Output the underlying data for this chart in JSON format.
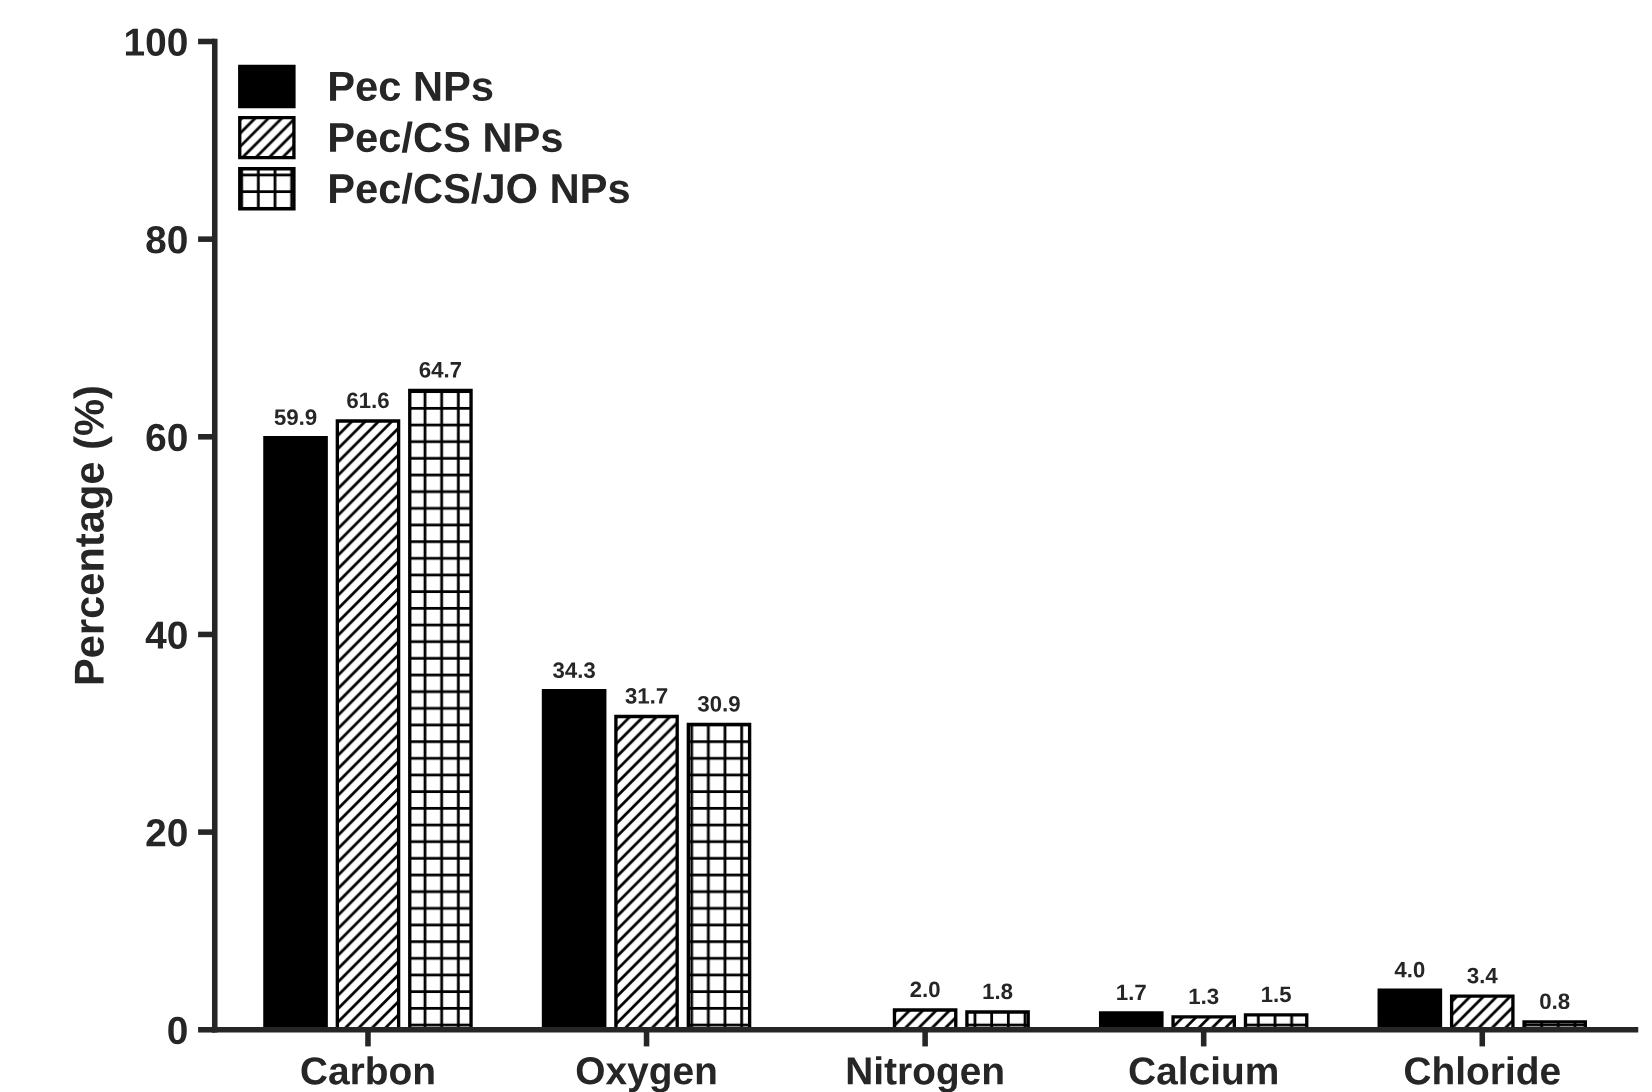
{
  "chart_data": {
    "type": "bar",
    "ylabel": "Percentage (%)",
    "categories": [
      "Carbon",
      "Oxygen",
      "Nitrogen",
      "Calcium",
      "Chloride"
    ],
    "series": [
      {
        "name": "Pec NPs",
        "color": "#000000",
        "values": [
          59.9,
          34.3,
          null,
          1.7,
          4.0
        ],
        "value_labels": [
          "59.9",
          "34.3",
          null,
          "1.7",
          "4.0"
        ]
      },
      {
        "name": "Pec/CS NPs",
        "color": "#000000",
        "values": [
          61.6,
          31.7,
          2.0,
          1.3,
          3.4
        ],
        "value_labels": [
          "61.6",
          "31.7",
          "2.0",
          "1.3",
          "3.4"
        ]
      },
      {
        "name": "Pec/CS/JO NPs",
        "color": "#000000",
        "values": [
          64.7,
          30.9,
          1.8,
          1.5,
          0.8
        ],
        "value_labels": [
          "64.7",
          "30.9",
          "1.8",
          "1.5",
          "0.8"
        ]
      }
    ],
    "ylim": [
      0,
      100
    ],
    "yticks": [
      0,
      20,
      40,
      60,
      80,
      100
    ],
    "grid": false,
    "legend": "top left"
  }
}
